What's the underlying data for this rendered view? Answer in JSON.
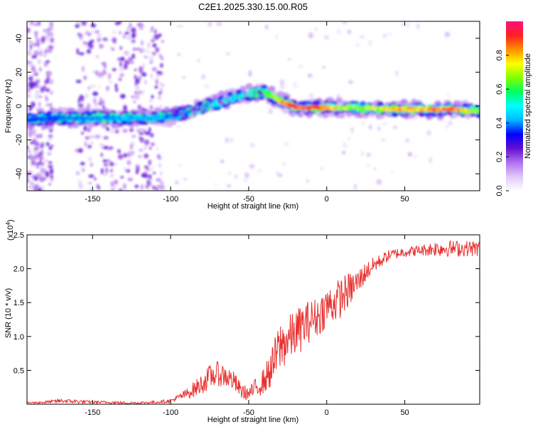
{
  "title": "C2E1.2025.330.15.00.R05",
  "chart_data": [
    {
      "type": "heatmap",
      "xlabel": "Height of straight line (km)",
      "ylabel": "Frequency (Hz)",
      "xlim": [
        -192,
        98
      ],
      "ylim": [
        -50,
        50
      ],
      "x_ticks": [
        -150,
        -100,
        -50,
        0,
        50
      ],
      "x_tick_labels": [
        "-150",
        "-100",
        "-50",
        "0",
        "50"
      ],
      "y_ticks": [
        -40,
        -20,
        0,
        20,
        40
      ],
      "y_tick_labels": [
        "-40",
        "-20",
        "0",
        "20",
        "40"
      ],
      "ridge": {
        "x": [
          -192,
          -170,
          -150,
          -130,
          -110,
          -100,
          -90,
          -80,
          -70,
          -60,
          -50,
          -45,
          -40,
          -35,
          -30,
          -25,
          -20,
          -10,
          0,
          10,
          20,
          40,
          60,
          80,
          98
        ],
        "y": [
          -8,
          -7,
          -7,
          -7,
          -7,
          -6,
          -4,
          -1,
          2,
          5,
          7,
          8,
          8,
          6,
          3,
          1,
          -1,
          -1,
          -1,
          -1,
          -1,
          -2,
          -2,
          -2,
          -3
        ],
        "amplitude": [
          0.35,
          0.4,
          0.4,
          0.45,
          0.45,
          0.4,
          0.4,
          0.45,
          0.5,
          0.5,
          0.55,
          0.6,
          0.6,
          0.7,
          0.8,
          0.9,
          0.95,
          0.95,
          0.9,
          0.75,
          0.7,
          0.8,
          0.85,
          0.9,
          0.7
        ]
      },
      "colorbar": {
        "label": "Normalized spectral amplitude",
        "range": [
          0,
          1
        ],
        "ticks": [
          0.0,
          0.2,
          0.4,
          0.6,
          0.8
        ],
        "tick_labels": [
          "0.0",
          "0.2",
          "0.4",
          "0.6",
          "0.8"
        ],
        "colors": [
          "#ffffff",
          "#e0c8f8",
          "#b070f0",
          "#6010d0",
          "#0000ff",
          "#00b8ff",
          "#00ffff",
          "#00ff60",
          "#80ff00",
          "#ffff00",
          "#ff9000",
          "#ff2020",
          "#ff1080"
        ]
      }
    },
    {
      "type": "line",
      "xlabel": "Height of straight line (km)",
      "ylabel": "SNR (10 * v/v)",
      "y_multiplier": "(x10",
      "y_multiplier_exp": "4",
      "xlim": [
        -192,
        98
      ],
      "ylim": [
        0,
        2.5
      ],
      "x_ticks": [
        -150,
        -100,
        -50,
        0,
        50
      ],
      "x_tick_labels": [
        "-150",
        "-100",
        "-50",
        "0",
        "50"
      ],
      "y_ticks": [
        0.5,
        1.0,
        1.5,
        2.0,
        2.5
      ],
      "y_tick_labels": [
        "0.5",
        "1.0",
        "1.5",
        "2.0",
        "2.5"
      ],
      "color": "#e83030",
      "series": [
        {
          "name": "SNR",
          "x": [
            -192,
            -180,
            -170,
            -160,
            -150,
            -140,
            -130,
            -120,
            -110,
            -100,
            -95,
            -90,
            -85,
            -80,
            -75,
            -70,
            -65,
            -60,
            -55,
            -50,
            -45,
            -40,
            -35,
            -30,
            -25,
            -20,
            -15,
            -10,
            -5,
            0,
            5,
            10,
            15,
            20,
            25,
            30,
            40,
            50,
            60,
            70,
            80,
            90,
            98
          ],
          "values": [
            0.02,
            0.03,
            0.05,
            0.04,
            0.03,
            0.03,
            0.02,
            0.02,
            0.03,
            0.05,
            0.1,
            0.15,
            0.22,
            0.3,
            0.4,
            0.45,
            0.42,
            0.35,
            0.2,
            0.15,
            0.25,
            0.35,
            0.55,
            0.85,
            0.95,
            1.05,
            1.15,
            1.25,
            1.3,
            1.45,
            1.5,
            1.6,
            1.7,
            1.8,
            1.95,
            2.05,
            2.2,
            2.25,
            2.27,
            2.3,
            2.3,
            2.3,
            2.3
          ],
          "noise": [
            0.01,
            0.02,
            0.03,
            0.03,
            0.02,
            0.02,
            0.02,
            0.02,
            0.02,
            0.03,
            0.05,
            0.08,
            0.12,
            0.15,
            0.18,
            0.18,
            0.18,
            0.15,
            0.12,
            0.1,
            0.15,
            0.2,
            0.3,
            0.4,
            0.35,
            0.35,
            0.35,
            0.3,
            0.3,
            0.3,
            0.3,
            0.3,
            0.25,
            0.2,
            0.15,
            0.12,
            0.08,
            0.08,
            0.08,
            0.12,
            0.12,
            0.12,
            0.12
          ]
        }
      ]
    }
  ]
}
